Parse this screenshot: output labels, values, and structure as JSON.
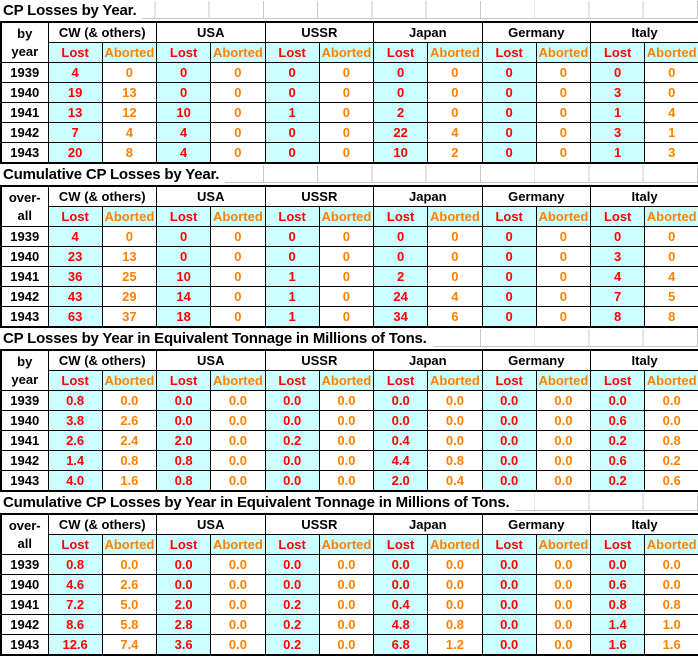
{
  "colors": {
    "background": "#FFFFFF",
    "border": "#000000",
    "gridline": "#C8C8C8",
    "lost_bg": "#CCFFFF",
    "lost_text": "#FF0000",
    "aborted_text": "#FF8000",
    "header_text": "#000000"
  },
  "labels": {
    "lost": "Lost",
    "aborted": "Aborted"
  },
  "countries": [
    "CW (& others)",
    "USA",
    "USSR",
    "Japan",
    "Germany",
    "Italy"
  ],
  "sections": [
    {
      "title": "CP Losses by Year.",
      "corner": [
        "by",
        "year"
      ],
      "rows": [
        {
          "year": "1939",
          "cells": [
            "4",
            "0",
            "0",
            "0",
            "0",
            "0",
            "0",
            "0",
            "0",
            "0",
            "0",
            "0"
          ]
        },
        {
          "year": "1940",
          "cells": [
            "19",
            "13",
            "0",
            "0",
            "0",
            "0",
            "0",
            "0",
            "0",
            "0",
            "3",
            "0"
          ]
        },
        {
          "year": "1941",
          "cells": [
            "13",
            "12",
            "10",
            "0",
            "1",
            "0",
            "2",
            "0",
            "0",
            "0",
            "1",
            "4"
          ]
        },
        {
          "year": "1942",
          "cells": [
            "7",
            "4",
            "4",
            "0",
            "0",
            "0",
            "22",
            "4",
            "0",
            "0",
            "3",
            "1"
          ]
        },
        {
          "year": "1943",
          "cells": [
            "20",
            "8",
            "4",
            "0",
            "0",
            "0",
            "10",
            "2",
            "0",
            "0",
            "1",
            "3"
          ]
        }
      ]
    },
    {
      "title": "Cumulative CP Losses by Year.",
      "corner": [
        "over-",
        "all"
      ],
      "rows": [
        {
          "year": "1939",
          "cells": [
            "4",
            "0",
            "0",
            "0",
            "0",
            "0",
            "0",
            "0",
            "0",
            "0",
            "0",
            "0"
          ]
        },
        {
          "year": "1940",
          "cells": [
            "23",
            "13",
            "0",
            "0",
            "0",
            "0",
            "0",
            "0",
            "0",
            "0",
            "3",
            "0"
          ]
        },
        {
          "year": "1941",
          "cells": [
            "36",
            "25",
            "10",
            "0",
            "1",
            "0",
            "2",
            "0",
            "0",
            "0",
            "4",
            "4"
          ]
        },
        {
          "year": "1942",
          "cells": [
            "43",
            "29",
            "14",
            "0",
            "1",
            "0",
            "24",
            "4",
            "0",
            "0",
            "7",
            "5"
          ]
        },
        {
          "year": "1943",
          "cells": [
            "63",
            "37",
            "18",
            "0",
            "1",
            "0",
            "34",
            "6",
            "0",
            "0",
            "8",
            "8"
          ]
        }
      ]
    },
    {
      "title": "CP Losses by Year in Equivalent Tonnage in Millions of Tons.",
      "corner": [
        "by",
        "year"
      ],
      "rows": [
        {
          "year": "1939",
          "cells": [
            "0.8",
            "0.0",
            "0.0",
            "0.0",
            "0.0",
            "0.0",
            "0.0",
            "0.0",
            "0.0",
            "0.0",
            "0.0",
            "0.0"
          ]
        },
        {
          "year": "1940",
          "cells": [
            "3.8",
            "2.6",
            "0.0",
            "0.0",
            "0.0",
            "0.0",
            "0.0",
            "0.0",
            "0.0",
            "0.0",
            "0.6",
            "0.0"
          ]
        },
        {
          "year": "1941",
          "cells": [
            "2.6",
            "2.4",
            "2.0",
            "0.0",
            "0.2",
            "0.0",
            "0.4",
            "0.0",
            "0.0",
            "0.0",
            "0.2",
            "0.8"
          ]
        },
        {
          "year": "1942",
          "cells": [
            "1.4",
            "0.8",
            "0.8",
            "0.0",
            "0.0",
            "0.0",
            "4.4",
            "0.8",
            "0.0",
            "0.0",
            "0.6",
            "0.2"
          ]
        },
        {
          "year": "1943",
          "cells": [
            "4.0",
            "1.6",
            "0.8",
            "0.0",
            "0.0",
            "0.0",
            "2.0",
            "0.4",
            "0.0",
            "0.0",
            "0.2",
            "0.6"
          ]
        }
      ]
    },
    {
      "title": "Cumulative CP Losses by Year in Equivalent Tonnage in Millions of Tons.",
      "corner": [
        "over-",
        "all"
      ],
      "rows": [
        {
          "year": "1939",
          "cells": [
            "0.8",
            "0.0",
            "0.0",
            "0.0",
            "0.0",
            "0.0",
            "0.0",
            "0.0",
            "0.0",
            "0.0",
            "0.0",
            "0.0"
          ]
        },
        {
          "year": "1940",
          "cells": [
            "4.6",
            "2.6",
            "0.0",
            "0.0",
            "0.0",
            "0.0",
            "0.0",
            "0.0",
            "0.0",
            "0.0",
            "0.6",
            "0.0"
          ]
        },
        {
          "year": "1941",
          "cells": [
            "7.2",
            "5.0",
            "2.0",
            "0.0",
            "0.2",
            "0.0",
            "0.4",
            "0.0",
            "0.0",
            "0.0",
            "0.8",
            "0.8"
          ]
        },
        {
          "year": "1942",
          "cells": [
            "8.6",
            "5.8",
            "2.8",
            "0.0",
            "0.2",
            "0.0",
            "4.8",
            "0.8",
            "0.0",
            "0.0",
            "1.4",
            "1.0"
          ]
        },
        {
          "year": "1943",
          "cells": [
            "12.6",
            "7.4",
            "3.6",
            "0.0",
            "0.2",
            "0.0",
            "6.8",
            "1.2",
            "0.0",
            "0.0",
            "1.6",
            "1.6"
          ]
        }
      ]
    }
  ]
}
